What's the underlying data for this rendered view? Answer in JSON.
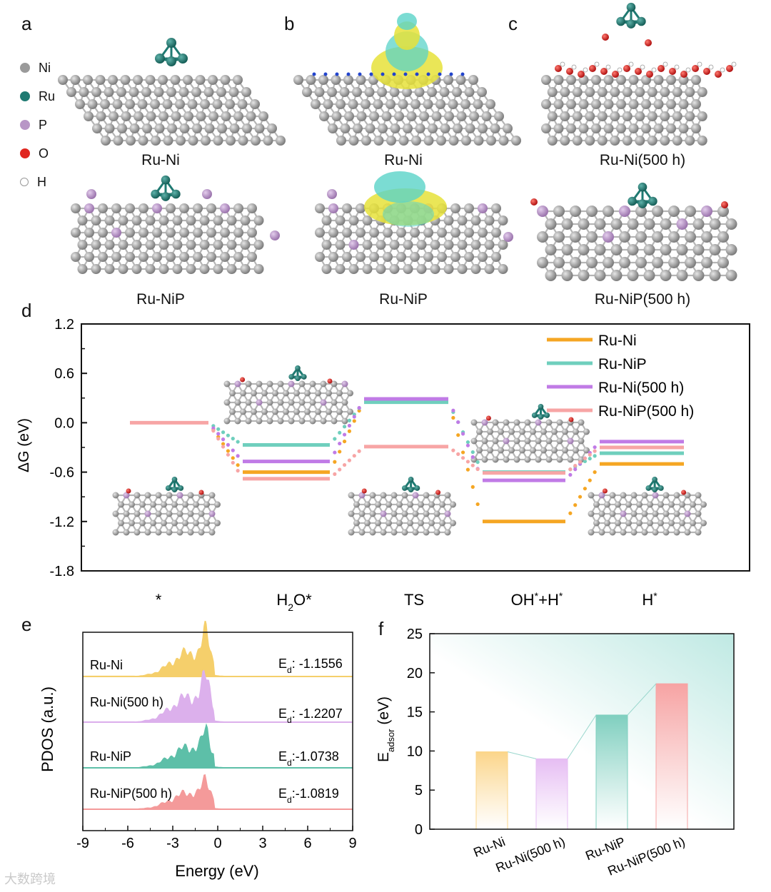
{
  "panel_letters": {
    "a": "a",
    "b": "b",
    "c": "c",
    "d": "d",
    "e": "e",
    "f": "f"
  },
  "element_legend": [
    {
      "symbol": "Ni",
      "color": "#9a9a9a"
    },
    {
      "symbol": "Ru",
      "color": "#1f7a72"
    },
    {
      "symbol": "P",
      "color": "#b896c6"
    },
    {
      "symbol": "O",
      "color": "#e0261f"
    },
    {
      "symbol": "H",
      "color": "#ffffff"
    }
  ],
  "structures": {
    "a_top": "Ru-Ni",
    "a_bottom": "Ru-NiP",
    "b_top": "Ru-Ni",
    "b_bottom": "Ru-NiP",
    "c_top": "Ru-Ni(500 h)",
    "c_bottom": "Ru-NiP(500 h)"
  },
  "watermark": "大数跨境",
  "colors": {
    "ru_ni": "#f5a623",
    "ru_nip": "#6fcfbd",
    "ru_ni_500": "#c07be6",
    "ru_nip_500": "#f7a5a5"
  },
  "chart_data": [
    {
      "type": "line",
      "panel": "d",
      "ylabel": "ΔG (eV)",
      "ylim": [
        -1.8,
        1.2
      ],
      "yticks": [
        "1.2",
        "0.6",
        "0.0",
        "-0.6",
        "-1.2",
        "-1.8"
      ],
      "ytick_values": [
        1.2,
        0.6,
        0.0,
        -0.6,
        -1.2,
        -1.8
      ],
      "categories": [
        "*",
        "H2O*",
        "TS",
        "OH*+H*",
        "H*"
      ],
      "category_labels": [
        {
          "base": "*",
          "sub": "",
          "rest": "",
          "sup": ""
        },
        {
          "base": "H",
          "sub": "2",
          "rest": "O*",
          "sup": ""
        },
        {
          "base": "TS",
          "sub": "",
          "rest": "",
          "sup": ""
        },
        {
          "base": "OH",
          "sub": "",
          "rest": "+H",
          "sup": "*",
          "sup_mid": "*"
        },
        {
          "base": "H",
          "sub": "",
          "rest": "",
          "sup": "*"
        }
      ],
      "series": [
        {
          "name": "Ru-Ni",
          "color": "#f5a623",
          "values": [
            null,
            -0.6,
            0.27,
            -1.2,
            -0.5
          ]
        },
        {
          "name": "Ru-NiP",
          "color": "#6fcfbd",
          "values": [
            null,
            -0.27,
            0.25,
            -0.6,
            -0.37
          ]
        },
        {
          "name": "Ru-Ni(500 h)",
          "color": "#c07be6",
          "values": [
            null,
            -0.47,
            0.29,
            -0.7,
            -0.23
          ]
        },
        {
          "name": "Ru-NiP(500 h)",
          "color": "#f7a5a5",
          "values": [
            0.0,
            -0.68,
            -0.29,
            -0.61,
            -0.3
          ]
        }
      ]
    },
    {
      "type": "area",
      "panel": "e",
      "ylabel": "PDOS  (a.u.)",
      "xlabel": "Energy (eV)",
      "xlim": [
        -9,
        9
      ],
      "xticks": [
        "-9",
        "-6",
        "-3",
        "0",
        "3",
        "6",
        "9"
      ],
      "xtick_values": [
        -9,
        -6,
        -3,
        0,
        3,
        6,
        9
      ],
      "series": [
        {
          "name": "Ru-Ni",
          "color": "#f5cf6b",
          "ed_label": "E",
          "ed_sub": "d",
          "ed_value": ": -1.1556"
        },
        {
          "name": "Ru-Ni(500 h)",
          "color": "#dcb0ec",
          "ed_label": "E",
          "ed_sub": "d",
          "ed_value": ": -1.2207"
        },
        {
          "name": "Ru-NiP",
          "color": "#5dbfa8",
          "ed_label": "E",
          "ed_sub": "d",
          "ed_value": ":-1.0738"
        },
        {
          "name": "Ru-NiP(500 h)",
          "color": "#f49a9a",
          "ed_label": "E",
          "ed_sub": "d",
          "ed_value": ":-1.0819"
        }
      ]
    },
    {
      "type": "bar",
      "panel": "f",
      "ylabel_base": "E",
      "ylabel_sub": "adsor",
      "ylabel_unit": " (eV)",
      "ylim": [
        0,
        25
      ],
      "yticks": [
        "0",
        "5",
        "10",
        "15",
        "20",
        "25"
      ],
      "ytick_values": [
        0,
        5,
        10,
        15,
        20,
        25
      ],
      "categories": [
        "Ru-Ni",
        "Ru-Ni(500 h)",
        "Ru-NiP",
        "Ru-NiP(500 h)"
      ],
      "values": [
        9.9,
        9.0,
        14.6,
        18.6
      ],
      "colors": [
        "#fbd58a",
        "#e6bdf3",
        "#7fcfbf",
        "#f7a3a3"
      ]
    }
  ]
}
